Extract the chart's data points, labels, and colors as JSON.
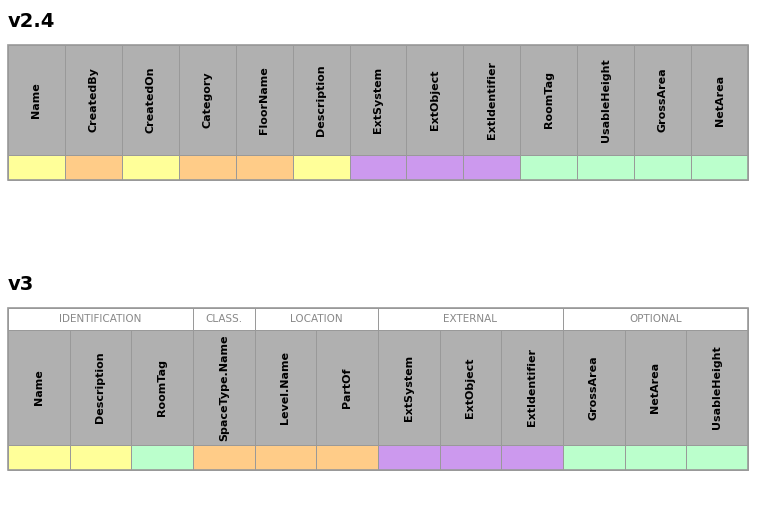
{
  "v24_title": "v2.4",
  "v3_title": "v3",
  "v24_fields": [
    "Name",
    "CreatedBy",
    "CreatedOn",
    "Category",
    "FloorName",
    "Description",
    "ExtSystem",
    "ExtObject",
    "ExtIdentifier",
    "RoomTag",
    "UsableHeight",
    "GrossArea",
    "NetArea"
  ],
  "v24_colors": [
    "#ffff99",
    "#ffcc88",
    "#ffff99",
    "#ffcc88",
    "#ffcc88",
    "#ffff99",
    "#cc99ee",
    "#cc99ee",
    "#cc99ee",
    "#bbffcc",
    "#bbffcc",
    "#bbffcc",
    "#bbffcc"
  ],
  "v3_fields": [
    "Name",
    "Description",
    "RoomTag",
    "SpaceType.Name",
    "Level.Name",
    "PartOf",
    "ExtSystem",
    "ExtObject",
    "ExtIdentifier",
    "GrossArea",
    "NetArea",
    "UsableHeight"
  ],
  "v3_colors": [
    "#ffff99",
    "#ffff99",
    "#bbffcc",
    "#ffcc88",
    "#ffcc88",
    "#ffcc88",
    "#cc99ee",
    "#cc99ee",
    "#cc99ee",
    "#bbffcc",
    "#bbffcc",
    "#bbffcc"
  ],
  "v3_groups": [
    {
      "label": "IDENTIFICATION",
      "start": 0,
      "end": 2
    },
    {
      "label": "CLASS.",
      "start": 3,
      "end": 3
    },
    {
      "label": "LOCATION",
      "start": 4,
      "end": 5
    },
    {
      "label": "EXTERNAL",
      "start": 6,
      "end": 8
    },
    {
      "label": "OPTIONAL",
      "start": 9,
      "end": 11
    }
  ],
  "header_bg": "#b0b0b0",
  "border_color": "#999999",
  "bg_color": "#ffffff",
  "title_fontsize": 14,
  "cell_fontsize": 8,
  "group_fontsize": 7.5
}
